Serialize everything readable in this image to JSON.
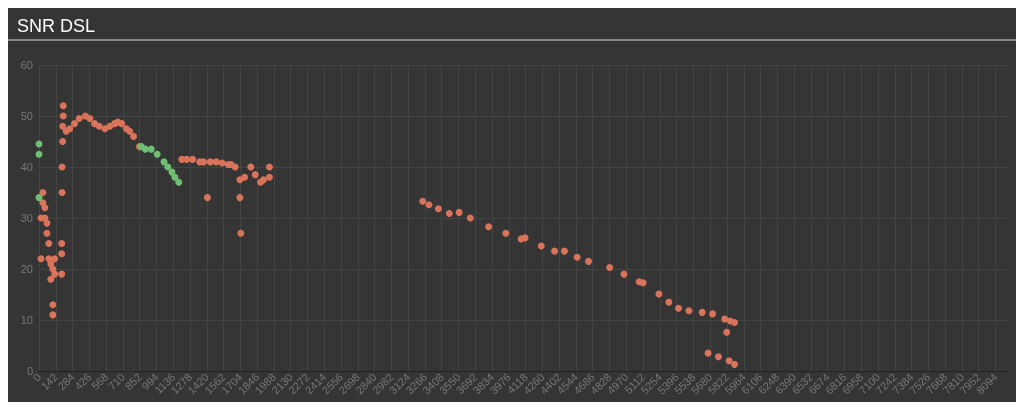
{
  "chart_data": {
    "type": "scatter",
    "title": "SNR DSL",
    "marker": "circle",
    "grid": true,
    "xlim": [
      0,
      8200
    ],
    "ylim": [
      0,
      60
    ],
    "yticks": [
      0,
      10,
      20,
      30,
      40,
      50,
      60
    ],
    "xticks": [
      0,
      142,
      284,
      426,
      568,
      710,
      852,
      994,
      1136,
      1278,
      1420,
      1562,
      1704,
      1846,
      1988,
      2130,
      2272,
      2414,
      2556,
      2698,
      2840,
      2982,
      3124,
      3266,
      3408,
      3550,
      3692,
      3834,
      3976,
      4118,
      4260,
      4402,
      4544,
      4686,
      4828,
      4970,
      5112,
      5254,
      5396,
      5538,
      5680,
      5822,
      5964,
      6106,
      6248,
      6390,
      6532,
      6674,
      6816,
      6958,
      7100,
      7242,
      7384,
      7526,
      7668,
      7810,
      7952,
      8094
    ],
    "series": [
      {
        "color": "#d9735a",
        "x": [
          17,
          17,
          33,
          33,
          50,
          50,
          67,
          67,
          83,
          83,
          100,
          100,
          117,
          117,
          117,
          133,
          133,
          192,
          192,
          192,
          195,
          195,
          200,
          200,
          205,
          205,
          230,
          260,
          300,
          340,
          392,
          430,
          470,
          510,
          558,
          600,
          640,
          667,
          700,
          740,
          767,
          800,
          850,
          1208,
          1250,
          1300,
          1360,
          1392,
          1425,
          1450,
          1500,
          1550,
          1600,
          1625,
          1660,
          1700,
          1700,
          1708,
          1740,
          1792,
          1830,
          1875,
          1900,
          1950,
          1950,
          3247,
          3300,
          3380,
          3472,
          3555,
          3650,
          3805,
          3950,
          4080,
          4113,
          4250,
          4363,
          4446,
          4554,
          4650,
          4829,
          4950,
          5079,
          5112,
          5246,
          5330,
          5412,
          5500,
          5612,
          5700,
          5803,
          5850,
          5886,
          5820,
          5662,
          5750,
          5840,
          5886
        ],
        "values": [
          22,
          30,
          33,
          35,
          32,
          30,
          29,
          27,
          25,
          22,
          21,
          18,
          20,
          13,
          11,
          19,
          22,
          19,
          23,
          25,
          35,
          40,
          45,
          48,
          50,
          52,
          47,
          47.5,
          48.5,
          49.5,
          50,
          49.5,
          48.5,
          48,
          47.5,
          48,
          48.5,
          48.8,
          48.5,
          47.5,
          47,
          46,
          44,
          41.5,
          41.5,
          41.5,
          41,
          41,
          34,
          41,
          41,
          40.8,
          40.5,
          40.5,
          40,
          37.5,
          34,
          27,
          38,
          40,
          38.5,
          37,
          37.5,
          38,
          40,
          33.3,
          32.6,
          31.8,
          30.9,
          31.1,
          30,
          28.3,
          27,
          25.9,
          26.1,
          24.5,
          23.5,
          23.5,
          22.3,
          21.5,
          20.3,
          19,
          17.5,
          17.3,
          15.1,
          13.5,
          12.3,
          11.8,
          11.5,
          11.2,
          10.2,
          9.8,
          9.5,
          7.6,
          3.5,
          2.8,
          2,
          1.3
        ]
      },
      {
        "color": "#6fbf73",
        "x": [
          0,
          0,
          0,
          866,
          900,
          950,
          1000,
          1058,
          1090,
          1125,
          1150,
          1183
        ],
        "values": [
          44.5,
          42.5,
          34,
          44,
          43.5,
          43.5,
          42.5,
          41,
          40,
          39,
          38,
          37
        ]
      }
    ]
  }
}
